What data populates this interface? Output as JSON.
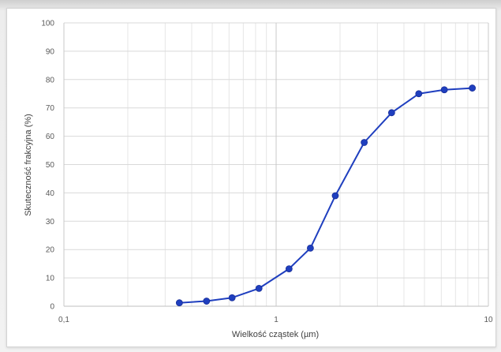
{
  "chart_data": {
    "type": "line",
    "title": "",
    "xlabel": "Wielkość cząstek (µm)",
    "ylabel": "Skuteczność frakcyjna (%)",
    "x_scale": "log",
    "xlim": [
      0.1,
      10
    ],
    "ylim": [
      0,
      100
    ],
    "x_ticks": [
      0.1,
      1,
      10
    ],
    "x_tick_labels": [
      "0,1",
      "1",
      "10"
    ],
    "y_ticks": [
      0,
      10,
      20,
      30,
      40,
      50,
      60,
      70,
      80,
      90,
      100
    ],
    "y_tick_labels": [
      "0",
      "10",
      "20",
      "30",
      "40",
      "50",
      "60",
      "70",
      "80",
      "90",
      "100"
    ],
    "grid": "major and minor (log)",
    "legend": "none",
    "series": [
      {
        "color": "#1f3fbf",
        "x": [
          0.35,
          0.47,
          0.62,
          0.83,
          1.15,
          1.45,
          1.9,
          2.6,
          3.5,
          4.7,
          6.2,
          8.4
        ],
        "y": [
          1.2,
          1.8,
          3.0,
          6.3,
          13.2,
          20.5,
          39.0,
          57.8,
          68.3,
          75.0,
          76.4,
          77.0
        ]
      }
    ]
  }
}
